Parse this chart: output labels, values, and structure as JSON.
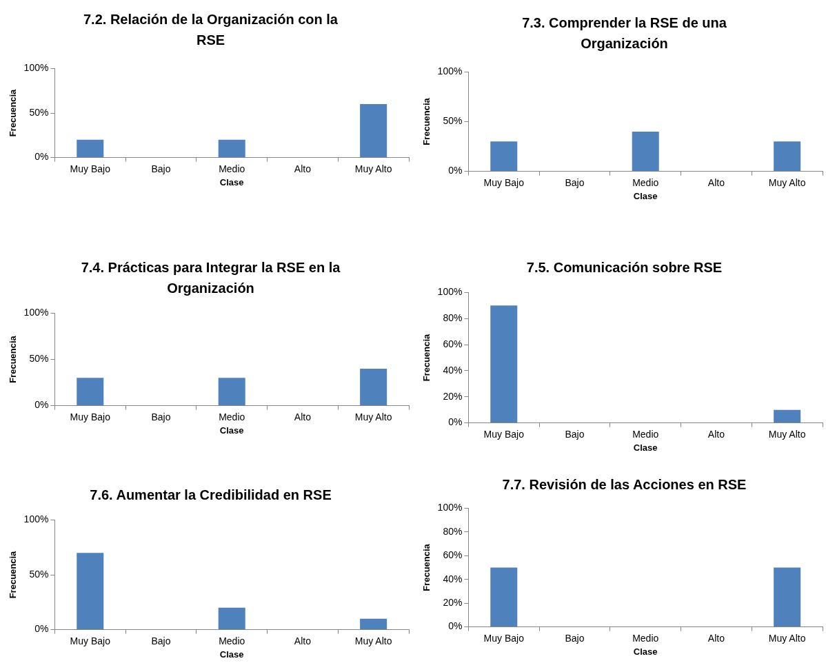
{
  "chart_data": [
    {
      "type": "bar",
      "title": "7.2. Relación de la Organización con la RSE",
      "xlabel": "Clase",
      "ylabel": "Frecuencia",
      "categories": [
        "Muy Bajo",
        "Bajo",
        "Medio",
        "Alto",
        "Muy Alto"
      ],
      "values": [
        20,
        0,
        20,
        0,
        60
      ],
      "color": "#4f81bd",
      "ylim": [
        0,
        100
      ],
      "yticks": [
        {
          "value": 0,
          "label": "0%"
        },
        {
          "value": 50,
          "label": "50%"
        },
        {
          "value": 100,
          "label": "100%"
        }
      ],
      "grid": false,
      "legend": false
    },
    {
      "type": "bar",
      "title": "7.3. Comprender la RSE de una Organización",
      "xlabel": "Clase",
      "ylabel": "Frecuencia",
      "categories": [
        "Muy Bajo",
        "Bajo",
        "Medio",
        "Alto",
        "Muy Alto"
      ],
      "values": [
        30,
        0,
        40,
        0,
        30
      ],
      "color": "#4f81bd",
      "ylim": [
        0,
        100
      ],
      "yticks": [
        {
          "value": 0,
          "label": "0%"
        },
        {
          "value": 50,
          "label": "50%"
        },
        {
          "value": 100,
          "label": "100%"
        }
      ],
      "grid": false,
      "legend": false
    },
    {
      "type": "bar",
      "title": "7.4. Prácticas para Integrar la RSE en la Organización",
      "xlabel": "Clase",
      "ylabel": "Frecuencia",
      "categories": [
        "Muy Bajo",
        "Bajo",
        "Medio",
        "Alto",
        "Muy Alto"
      ],
      "values": [
        30,
        0,
        30,
        0,
        40
      ],
      "color": "#4f81bd",
      "ylim": [
        0,
        100
      ],
      "yticks": [
        {
          "value": 0,
          "label": "0%"
        },
        {
          "value": 50,
          "label": "50%"
        },
        {
          "value": 100,
          "label": "100%"
        }
      ],
      "grid": false,
      "legend": false
    },
    {
      "type": "bar",
      "title": "7.5. Comunicación sobre RSE",
      "xlabel": "Clase",
      "ylabel": "Frecuencia",
      "categories": [
        "Muy Bajo",
        "Bajo",
        "Medio",
        "Alto",
        "Muy Alto"
      ],
      "values": [
        90,
        0,
        0,
        0,
        10
      ],
      "color": "#4f81bd",
      "ylim": [
        0,
        100
      ],
      "yticks": [
        {
          "value": 0,
          "label": "0%"
        },
        {
          "value": 20,
          "label": "20%"
        },
        {
          "value": 40,
          "label": "40%"
        },
        {
          "value": 60,
          "label": "60%"
        },
        {
          "value": 80,
          "label": "80%"
        },
        {
          "value": 100,
          "label": "100%"
        }
      ],
      "grid": false,
      "legend": false
    },
    {
      "type": "bar",
      "title": "7.6. Aumentar la Credibilidad en RSE",
      "xlabel": "Clase",
      "ylabel": "Frecuencia",
      "categories": [
        "Muy Bajo",
        "Bajo",
        "Medio",
        "Alto",
        "Muy Alto"
      ],
      "values": [
        70,
        0,
        20,
        0,
        10
      ],
      "color": "#4f81bd",
      "ylim": [
        0,
        100
      ],
      "yticks": [
        {
          "value": 0,
          "label": "0%"
        },
        {
          "value": 50,
          "label": "50%"
        },
        {
          "value": 100,
          "label": "100%"
        }
      ],
      "grid": false,
      "legend": false
    },
    {
      "type": "bar",
      "title": "7.7. Revisión de las Acciones en RSE",
      "xlabel": "Clase",
      "ylabel": "Frecuencia",
      "categories": [
        "Muy Bajo",
        "Bajo",
        "Medio",
        "Alto",
        "Muy Alto"
      ],
      "values": [
        50,
        0,
        0,
        0,
        50
      ],
      "color": "#4f81bd",
      "ylim": [
        0,
        100
      ],
      "yticks": [
        {
          "value": 0,
          "label": "0%"
        },
        {
          "value": 20,
          "label": "20%"
        },
        {
          "value": 40,
          "label": "40%"
        },
        {
          "value": 60,
          "label": "60%"
        },
        {
          "value": 80,
          "label": "80%"
        },
        {
          "value": 100,
          "label": "100%"
        }
      ],
      "grid": false,
      "legend": false
    }
  ]
}
